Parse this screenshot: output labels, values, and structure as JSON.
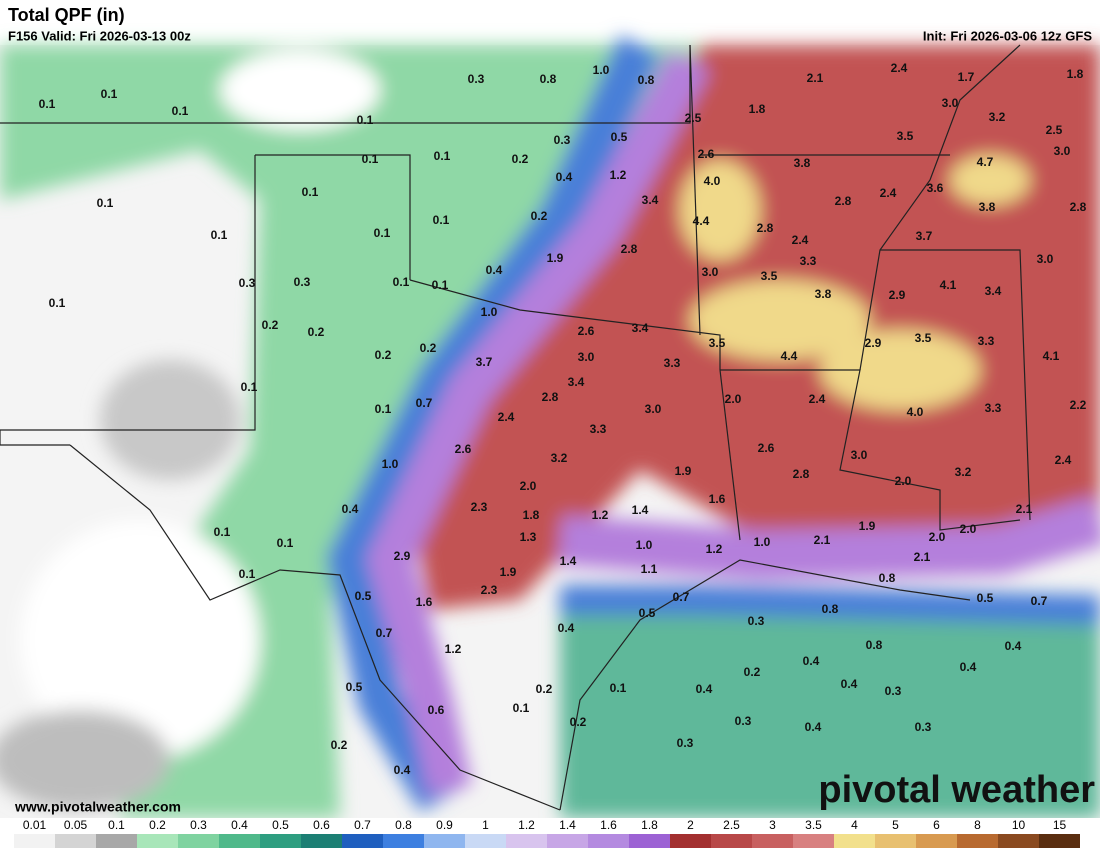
{
  "header": {
    "title": "Total QPF (in)",
    "valid": "F156 Valid: Fri 2026-03-13 00z",
    "init": "Init: Fri 2026-03-06 12z GFS"
  },
  "footer": {
    "website": "www.pivotalweather.com",
    "logo": "pivotal weather"
  },
  "map_labels": [
    "0.1",
    "0.1",
    "0.1",
    "0.3",
    "0.8",
    "1.0",
    "0.8",
    "2.1",
    "2.4",
    "1.7",
    "1.8",
    "1.8",
    "3.0",
    "3.2",
    "2.5",
    "0.1",
    "0.3",
    "0.5",
    "2.5",
    "3.5",
    "0.1",
    "0.1",
    "0.2",
    "2.6",
    "3.8",
    "4.7",
    "3.0",
    "0.1",
    "0.1",
    "0.4",
    "1.2",
    "4.0",
    "2.4",
    "3.6",
    "3.4",
    "2.8",
    "3.8",
    "2.8",
    "0.1",
    "0.2",
    "4.4",
    "2.8",
    "0.1",
    "0.1",
    "2.4",
    "3.7",
    "1.9",
    "2.8",
    "0.4",
    "3.0",
    "3.5",
    "3.3",
    "3.0",
    "0.3",
    "0.3",
    "0.1",
    "0.1",
    "4.1",
    "3.4",
    "3.8",
    "2.9",
    "0.1",
    "1.0",
    "0.2",
    "0.2",
    "2.6",
    "3.4",
    "3.5",
    "3.5",
    "3.3",
    "2.9",
    "0.2",
    "0.2",
    "3.7",
    "3.0",
    "3.3",
    "4.4",
    "4.1",
    "0.1",
    "3.4",
    "0.1",
    "0.7",
    "2.4",
    "2.8",
    "3.0",
    "2.0",
    "2.4",
    "4.0",
    "3.3",
    "2.2",
    "2.6",
    "3.3",
    "2.6",
    "3.0",
    "2.4",
    "1.0",
    "3.2",
    "1.9",
    "2.8",
    "3.2",
    "2.0",
    "2.0",
    "0.4",
    "2.3",
    "1.8",
    "1.6",
    "1.2",
    "1.4",
    "2.1",
    "0.1",
    "0.1",
    "1.3",
    "1.9",
    "2.0",
    "2.0",
    "1.0",
    "1.2",
    "1.0",
    "2.1",
    "2.9",
    "1.4",
    "2.1",
    "0.1",
    "1.1",
    "1.9",
    "0.8",
    "0.5",
    "2.3",
    "1.6",
    "0.7",
    "0.5",
    "0.7",
    "0.8",
    "0.5",
    "0.3",
    "0.7",
    "0.4",
    "0.8",
    "1.2",
    "0.4",
    "0.4",
    "0.2",
    "0.4",
    "0.5",
    "0.1",
    "0.4",
    "0.4",
    "0.3",
    "0.2",
    "0.6",
    "0.1",
    "0.2",
    "0.3",
    "0.4",
    "0.3",
    "0.3",
    "0.2",
    "0.4"
  ],
  "colorbar": {
    "labels": [
      "0.01",
      "0.05",
      "0.1",
      "0.2",
      "0.3",
      "0.4",
      "0.5",
      "0.6",
      "0.7",
      "0.8",
      "0.9",
      "1",
      "1.2",
      "1.4",
      "1.6",
      "1.8",
      "2",
      "2.5",
      "3",
      "3.5",
      "4",
      "5",
      "6",
      "8",
      "10",
      "15"
    ],
    "colors": [
      "#f2f2f2",
      "#d4d4d4",
      "#a8a8a8",
      "#a8e6b9",
      "#7fd3a0",
      "#4fb98a",
      "#2e9e80",
      "#1c7f74",
      "#1f5fbf",
      "#3d7fe0",
      "#8fb6ef",
      "#c9d9f5",
      "#d8c4ee",
      "#c7a6e6",
      "#b48ae0",
      "#9c62d4",
      "#a33030",
      "#b84848",
      "#c86060",
      "#d88080",
      "#f2e08c",
      "#e8c070",
      "#d89a50",
      "#b86a30",
      "#8a4a20",
      "#5a2e10"
    ]
  }
}
